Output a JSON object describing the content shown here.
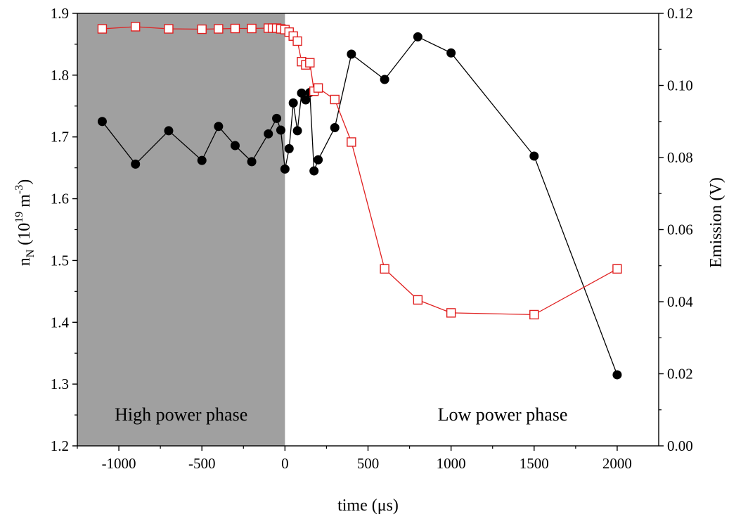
{
  "chart_data": {
    "type": "line",
    "xlabel": "time (μs)",
    "ylabel_left": {
      "main": "n",
      "sub": "N",
      "open": " (10",
      "sup1": "19",
      "mid": " m",
      "sup2": "-3",
      "close": ")"
    },
    "ylabel_right": "Emission (V)",
    "xlim": [
      -1250,
      2250
    ],
    "ylim_left": [
      1.2,
      1.9
    ],
    "ylim_right": [
      0.0,
      0.12
    ],
    "x_ticks": [
      "-1000",
      "-500",
      "0",
      "500",
      "1000",
      "1500",
      "2000"
    ],
    "y_left_ticks": [
      "1.2",
      "1.3",
      "1.4",
      "1.5",
      "1.6",
      "1.7",
      "1.8",
      "1.9"
    ],
    "y_right_ticks": [
      "0.00",
      "0.02",
      "0.04",
      "0.06",
      "0.08",
      "0.10",
      "0.12"
    ],
    "regions": [
      {
        "label": "High power phase",
        "x_range": [
          -1250,
          0
        ],
        "fill": "#a0a0a0"
      },
      {
        "label": "Low power phase",
        "x_range": [
          0,
          2250
        ],
        "fill": "#ffffff"
      }
    ],
    "series": [
      {
        "axis": "left",
        "color": "#000000",
        "marker": "filled-circle",
        "x": [
          -1100,
          -900,
          -700,
          -500,
          -400,
          -300,
          -200,
          -100,
          -50,
          -25,
          0,
          25,
          50,
          75,
          100,
          125,
          150,
          175,
          200,
          300,
          400,
          600,
          800,
          1000,
          1500,
          2000
        ],
        "y": [
          1.725,
          1.656,
          1.71,
          1.662,
          1.717,
          1.686,
          1.66,
          1.705,
          1.73,
          1.711,
          1.648,
          1.681,
          1.755,
          1.71,
          1.771,
          1.76,
          1.772,
          1.645,
          1.663,
          1.715,
          1.834,
          1.793,
          1.862,
          1.836,
          1.669,
          1.315
        ]
      },
      {
        "axis": "right",
        "color": "#e02020",
        "marker": "open-square",
        "x": [
          -1100,
          -900,
          -700,
          -500,
          -400,
          -300,
          -200,
          -100,
          -75,
          -50,
          -25,
          0,
          25,
          50,
          75,
          100,
          125,
          150,
          175,
          200,
          300,
          400,
          600,
          800,
          1000,
          1500,
          2000
        ],
        "y": [
          0.1157,
          0.1163,
          0.1157,
          0.1156,
          0.1157,
          0.1158,
          0.1158,
          0.1159,
          0.1159,
          0.1159,
          0.1157,
          0.1155,
          0.1148,
          0.1137,
          0.1123,
          0.1066,
          0.1057,
          0.1063,
          0.0984,
          0.0993,
          0.0961,
          0.0843,
          0.0491,
          0.0405,
          0.0369,
          0.0364,
          0.0491
        ]
      }
    ]
  }
}
